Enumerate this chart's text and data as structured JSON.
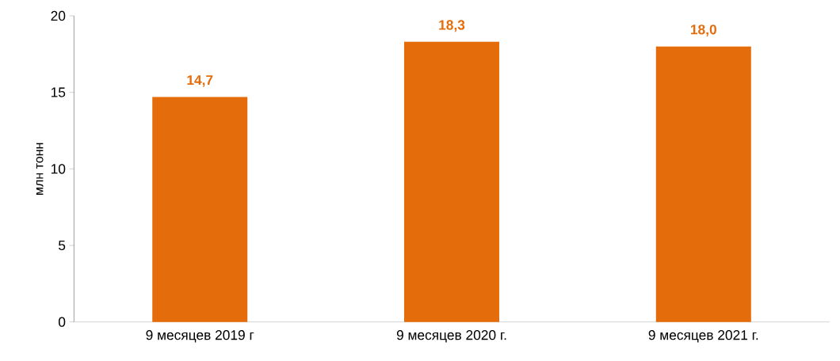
{
  "chart_data": {
    "type": "bar",
    "ylabel": "млн тонн",
    "categories": [
      "9 месяцев 2019 г",
      "9 месяцев 2020 г.",
      "9 месяцев 2021 г."
    ],
    "values": [
      14.7,
      18.3,
      18.0
    ],
    "value_labels": [
      "14,7",
      "18,3",
      "18,0"
    ],
    "color": "#e46c0a",
    "ylim": [
      0,
      20
    ],
    "yticks": [
      0,
      5,
      10,
      15,
      20
    ],
    "grid": false
  }
}
